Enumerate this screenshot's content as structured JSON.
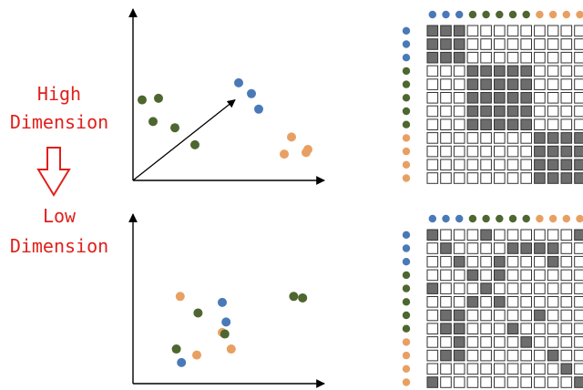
{
  "labels": {
    "high_line1": "High",
    "high_line2": "Dimension",
    "low_line1": "Low",
    "low_line2": "Dimension"
  },
  "colors": {
    "blue": "#4a79b7",
    "green": "#4e6630",
    "orange": "#e8a062",
    "text_red": "#e0201c",
    "cell_filled": "#6d6d6d",
    "cell_border": "#333333"
  },
  "top_panel": {
    "clusters": [
      {
        "color": "green",
        "points": [
          [
            0.05,
            0.52
          ],
          [
            0.14,
            0.53
          ],
          [
            0.11,
            0.38
          ],
          [
            0.23,
            0.34
          ],
          [
            0.34,
            0.23
          ]
        ]
      },
      {
        "color": "blue",
        "points": [
          [
            0.58,
            0.63
          ],
          [
            0.65,
            0.56
          ],
          [
            0.69,
            0.46
          ]
        ]
      },
      {
        "color": "orange",
        "points": [
          [
            0.87,
            0.28
          ],
          [
            0.83,
            0.17
          ],
          [
            0.95,
            0.18
          ],
          [
            0.96,
            0.2
          ]
        ]
      }
    ],
    "arrow": {
      "from": [
        0.0,
        0.0
      ],
      "to": [
        0.56,
        0.52
      ]
    }
  },
  "bottom_panel": {
    "clusters": [
      {
        "color": "orange",
        "points": [
          [
            0.37,
            0.58
          ],
          [
            0.7,
            0.34
          ],
          [
            0.77,
            0.23
          ],
          [
            0.5,
            0.19
          ]
        ]
      },
      {
        "color": "blue",
        "points": [
          [
            0.7,
            0.54
          ],
          [
            0.73,
            0.41
          ],
          [
            0.38,
            0.14
          ]
        ]
      },
      {
        "color": "green",
        "points": [
          [
            0.51,
            0.47
          ],
          [
            0.72,
            0.33
          ],
          [
            0.34,
            0.23
          ],
          [
            1.26,
            0.58
          ],
          [
            1.33,
            0.57
          ]
        ]
      }
    ]
  },
  "matrix_labels": {
    "top": [
      "blue",
      "blue",
      "blue",
      "green",
      "green",
      "green",
      "green",
      "green",
      "orange",
      "orange",
      "orange",
      "orange"
    ],
    "side": [
      "blue",
      "blue",
      "blue",
      "green",
      "green",
      "green",
      "green",
      "green",
      "orange",
      "orange",
      "orange",
      "orange"
    ]
  },
  "top_matrix": [
    [
      1,
      1,
      1,
      0,
      0,
      0,
      0,
      0,
      0,
      0,
      0,
      0
    ],
    [
      1,
      1,
      1,
      0,
      0,
      0,
      0,
      0,
      0,
      0,
      0,
      0
    ],
    [
      1,
      1,
      1,
      0,
      0,
      0,
      0,
      0,
      0,
      0,
      0,
      0
    ],
    [
      0,
      0,
      0,
      1,
      1,
      1,
      1,
      1,
      0,
      0,
      0,
      0
    ],
    [
      0,
      0,
      0,
      1,
      1,
      1,
      1,
      1,
      0,
      0,
      0,
      0
    ],
    [
      0,
      0,
      0,
      1,
      1,
      1,
      1,
      1,
      0,
      0,
      0,
      0
    ],
    [
      0,
      0,
      0,
      1,
      1,
      1,
      1,
      1,
      0,
      0,
      0,
      0
    ],
    [
      0,
      0,
      0,
      1,
      1,
      1,
      1,
      1,
      0,
      0,
      0,
      0
    ],
    [
      0,
      0,
      0,
      0,
      0,
      0,
      0,
      0,
      1,
      1,
      1,
      1
    ],
    [
      0,
      0,
      0,
      0,
      0,
      0,
      0,
      0,
      1,
      1,
      1,
      1
    ],
    [
      0,
      0,
      0,
      0,
      0,
      0,
      0,
      0,
      1,
      1,
      1,
      1
    ],
    [
      0,
      0,
      0,
      0,
      0,
      0,
      0,
      0,
      1,
      1,
      1,
      1
    ]
  ],
  "bottom_matrix": [
    [
      1,
      0,
      0,
      0,
      1,
      0,
      0,
      0,
      0,
      0,
      0,
      1
    ],
    [
      0,
      1,
      0,
      0,
      0,
      0,
      1,
      1,
      1,
      1,
      0,
      0
    ],
    [
      0,
      0,
      1,
      0,
      0,
      1,
      0,
      0,
      0,
      1,
      0,
      0
    ],
    [
      0,
      0,
      0,
      1,
      0,
      1,
      0,
      0,
      0,
      0,
      0,
      0
    ],
    [
      1,
      0,
      0,
      0,
      1,
      0,
      0,
      0,
      0,
      0,
      0,
      0
    ],
    [
      0,
      0,
      0,
      1,
      0,
      1,
      0,
      0,
      0,
      0,
      0,
      0
    ],
    [
      0,
      1,
      1,
      0,
      0,
      0,
      0,
      0,
      1,
      0,
      0,
      0
    ],
    [
      0,
      1,
      1,
      0,
      0,
      0,
      1,
      0,
      0,
      0,
      0,
      0
    ],
    [
      0,
      0,
      1,
      0,
      0,
      0,
      0,
      1,
      0,
      0,
      0,
      0
    ],
    [
      0,
      1,
      1,
      0,
      0,
      0,
      0,
      0,
      0,
      1,
      0,
      0
    ],
    [
      0,
      0,
      0,
      0,
      0,
      0,
      0,
      0,
      0,
      0,
      1,
      0
    ],
    [
      1,
      0,
      0,
      0,
      0,
      0,
      0,
      0,
      0,
      0,
      0,
      1
    ]
  ]
}
